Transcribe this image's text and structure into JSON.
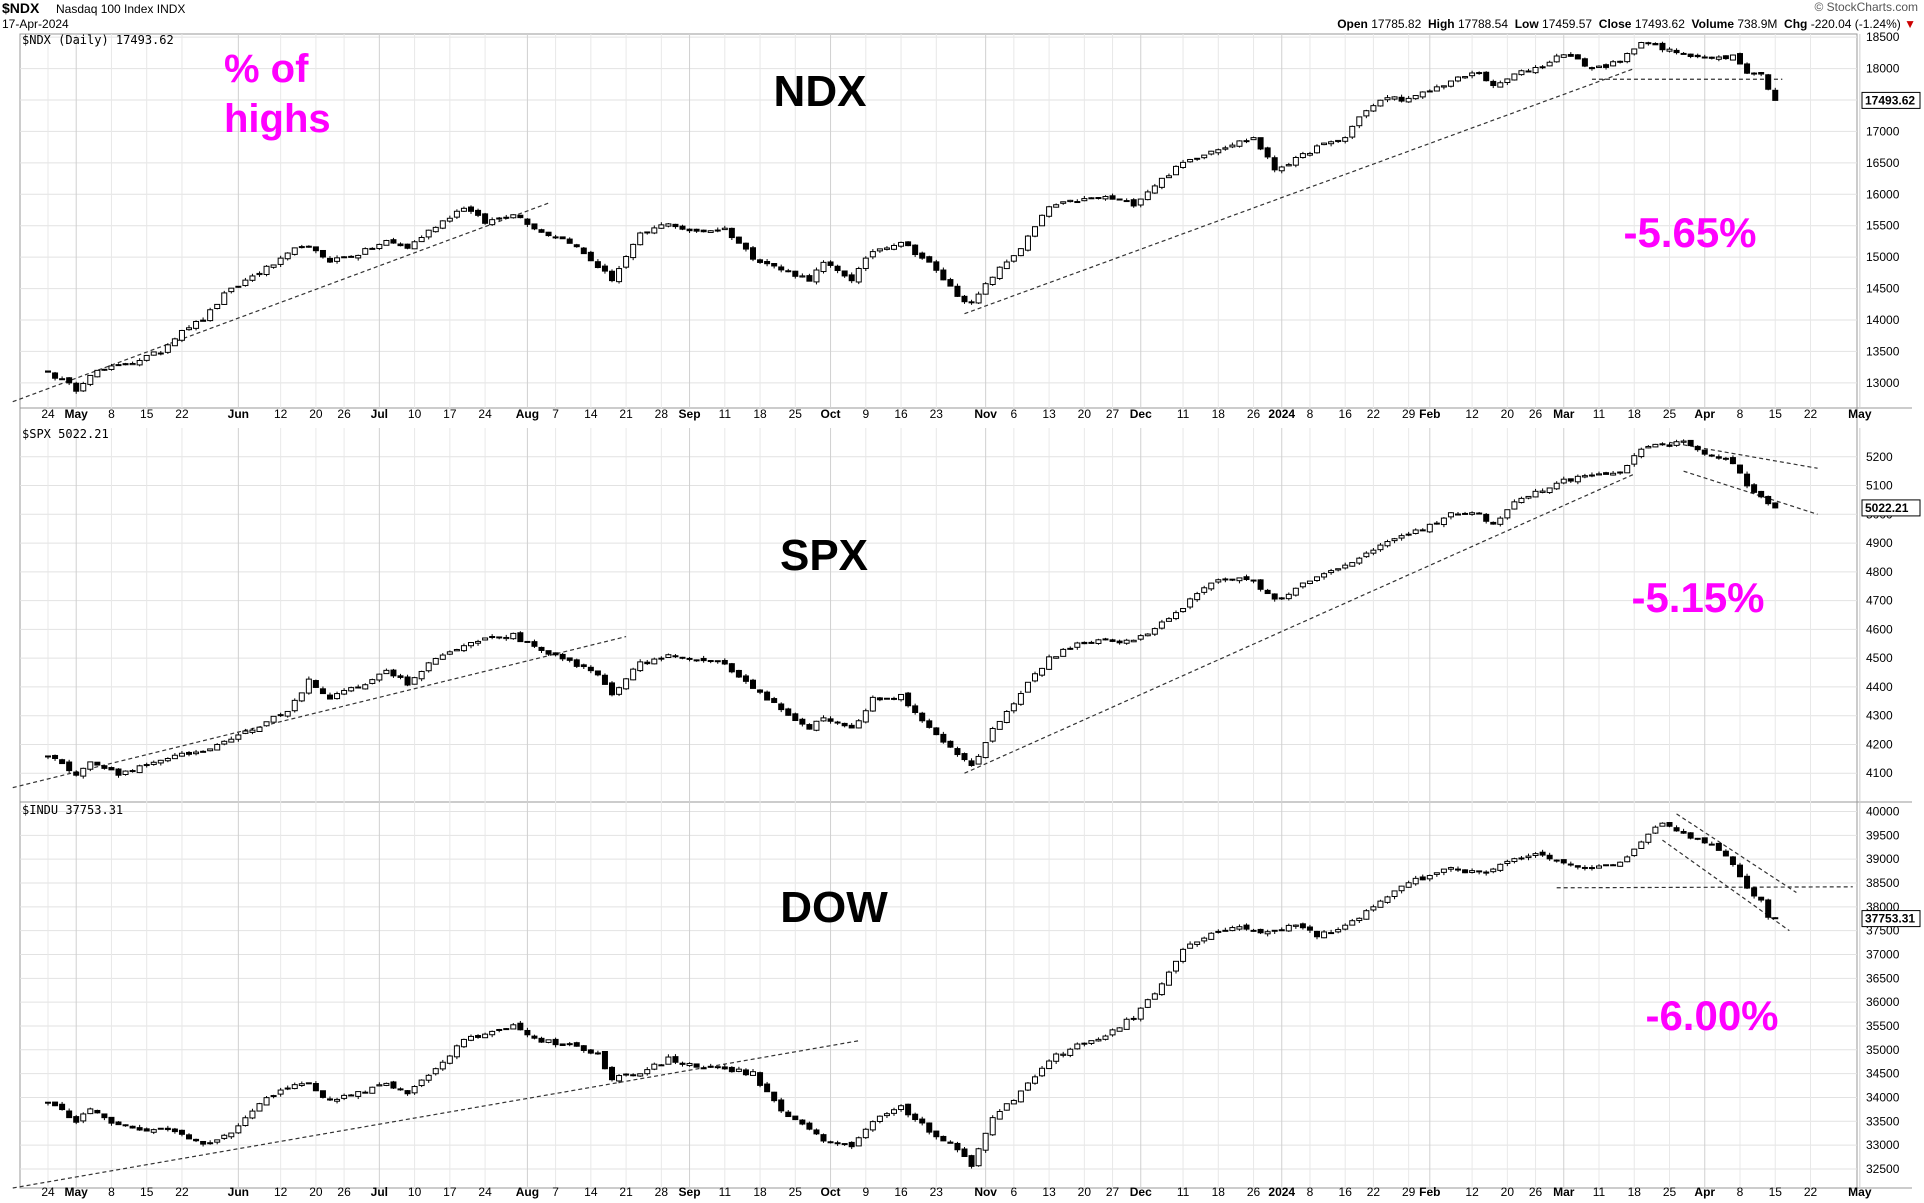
{
  "header": {
    "symbol": "$NDX",
    "name": "Nasdaq 100 Index",
    "exchange": "INDX",
    "date": "17-Apr-2024",
    "brand": "© StockCharts.com",
    "open_label": "Open",
    "open": "17785.82",
    "high_label": "High",
    "high": "17788.54",
    "low_label": "Low",
    "low": "17459.57",
    "close_label": "Close",
    "close": "17493.62",
    "volume_label": "Volume",
    "volume": "738.9M",
    "chg_label": "Chg",
    "chg": "-220.04 (-1.24%)"
  },
  "annotations": {
    "highs_line1": "% of",
    "highs_line2": "highs"
  },
  "x_axis": {
    "ticks": [
      {
        "d": 0,
        "label": "24"
      },
      {
        "d": 4,
        "label": "May",
        "month": true
      },
      {
        "d": 9,
        "label": "8"
      },
      {
        "d": 14,
        "label": "15"
      },
      {
        "d": 19,
        "label": "22"
      },
      {
        "d": 27,
        "label": "Jun",
        "month": true
      },
      {
        "d": 33,
        "label": "12"
      },
      {
        "d": 38,
        "label": "20"
      },
      {
        "d": 42,
        "label": "26"
      },
      {
        "d": 47,
        "label": "Jul",
        "month": true
      },
      {
        "d": 52,
        "label": "10"
      },
      {
        "d": 57,
        "label": "17"
      },
      {
        "d": 62,
        "label": "24"
      },
      {
        "d": 68,
        "label": "Aug",
        "month": true
      },
      {
        "d": 72,
        "label": "7"
      },
      {
        "d": 77,
        "label": "14"
      },
      {
        "d": 82,
        "label": "21"
      },
      {
        "d": 87,
        "label": "28"
      },
      {
        "d": 91,
        "label": "Sep",
        "month": true
      },
      {
        "d": 96,
        "label": "11"
      },
      {
        "d": 101,
        "label": "18"
      },
      {
        "d": 106,
        "label": "25"
      },
      {
        "d": 111,
        "label": "Oct",
        "month": true
      },
      {
        "d": 116,
        "label": "9"
      },
      {
        "d": 121,
        "label": "16"
      },
      {
        "d": 126,
        "label": "23"
      },
      {
        "d": 133,
        "label": "Nov",
        "month": true
      },
      {
        "d": 137,
        "label": "6"
      },
      {
        "d": 142,
        "label": "13"
      },
      {
        "d": 147,
        "label": "20"
      },
      {
        "d": 151,
        "label": "27"
      },
      {
        "d": 155,
        "label": "Dec",
        "month": true
      },
      {
        "d": 161,
        "label": "11"
      },
      {
        "d": 166,
        "label": "18"
      },
      {
        "d": 171,
        "label": "26"
      },
      {
        "d": 175,
        "label": "2024",
        "month": true
      },
      {
        "d": 179,
        "label": "8"
      },
      {
        "d": 184,
        "label": "16"
      },
      {
        "d": 188,
        "label": "22"
      },
      {
        "d": 193,
        "label": "29"
      },
      {
        "d": 196,
        "label": "Feb",
        "month": true
      },
      {
        "d": 202,
        "label": "12"
      },
      {
        "d": 207,
        "label": "20"
      },
      {
        "d": 211,
        "label": "26"
      },
      {
        "d": 215,
        "label": "Mar",
        "month": true
      },
      {
        "d": 220,
        "label": "11"
      },
      {
        "d": 225,
        "label": "18"
      },
      {
        "d": 230,
        "label": "25"
      },
      {
        "d": 235,
        "label": "Apr",
        "month": true
      },
      {
        "d": 240,
        "label": "8"
      },
      {
        "d": 245,
        "label": "15"
      },
      {
        "d": 250,
        "label": "22"
      },
      {
        "d": 257,
        "label": "May",
        "month": true
      }
    ]
  },
  "chart_data": [
    {
      "type": "candlestick",
      "symbol": "$NDX",
      "legend": "$NDX (Daily) 17493.62",
      "title": "NDX",
      "pct_from_high": "-5.65%",
      "last_value": "17493.62",
      "y_ticks": [
        13000,
        13500,
        14000,
        14500,
        15000,
        15500,
        16000,
        16500,
        17000,
        17500,
        18000,
        18500
      ],
      "ylim": [
        12600,
        18550
      ],
      "anchors": [
        [
          0,
          13170
        ],
        [
          4,
          12900
        ],
        [
          6,
          13150
        ],
        [
          12,
          13330
        ],
        [
          16,
          13500
        ],
        [
          19,
          13850
        ],
        [
          22,
          14000
        ],
        [
          25,
          14400
        ],
        [
          29,
          14700
        ],
        [
          33,
          14950
        ],
        [
          36,
          15200
        ],
        [
          40,
          14950
        ],
        [
          44,
          15050
        ],
        [
          48,
          15250
        ],
        [
          51,
          15150
        ],
        [
          55,
          15500
        ],
        [
          59,
          15800
        ],
        [
          62,
          15550
        ],
        [
          66,
          15700
        ],
        [
          70,
          15400
        ],
        [
          74,
          15250
        ],
        [
          80,
          14650
        ],
        [
          84,
          15350
        ],
        [
          88,
          15550
        ],
        [
          91,
          15400
        ],
        [
          96,
          15450
        ],
        [
          100,
          15000
        ],
        [
          104,
          14800
        ],
        [
          108,
          14650
        ],
        [
          110,
          14900
        ],
        [
          114,
          14650
        ],
        [
          117,
          15100
        ],
        [
          121,
          15250
        ],
        [
          125,
          14900
        ],
        [
          129,
          14400
        ],
        [
          131,
          14250
        ],
        [
          134,
          14700
        ],
        [
          138,
          15150
        ],
        [
          142,
          15800
        ],
        [
          146,
          15900
        ],
        [
          150,
          15950
        ],
        [
          154,
          15850
        ],
        [
          157,
          16150
        ],
        [
          161,
          16500
        ],
        [
          165,
          16700
        ],
        [
          168,
          16800
        ],
        [
          171,
          16900
        ],
        [
          174,
          16400
        ],
        [
          177,
          16550
        ],
        [
          180,
          16750
        ],
        [
          184,
          16900
        ],
        [
          186,
          17250
        ],
        [
          190,
          17550
        ],
        [
          193,
          17500
        ],
        [
          196,
          17650
        ],
        [
          199,
          17800
        ],
        [
          203,
          17950
        ],
        [
          205,
          17700
        ],
        [
          208,
          17900
        ],
        [
          212,
          18050
        ],
        [
          215,
          18250
        ],
        [
          219,
          18000
        ],
        [
          223,
          18100
        ],
        [
          226,
          18450
        ],
        [
          229,
          18300
        ],
        [
          232,
          18250
        ],
        [
          236,
          18150
        ],
        [
          239,
          18200
        ],
        [
          241,
          17950
        ],
        [
          243,
          17900
        ],
        [
          244,
          17700
        ],
        [
          245,
          17493.62
        ]
      ],
      "trendlines": [
        {
          "from": [
            -5,
            12700
          ],
          "to": [
            71,
            15860
          ]
        },
        {
          "from": [
            130,
            14100
          ],
          "to": [
            225,
            18000
          ]
        },
        {
          "from": [
            219,
            17830
          ],
          "to": [
            246,
            17830
          ]
        }
      ]
    },
    {
      "type": "candlestick",
      "symbol": "$SPX",
      "legend": "$SPX 5022.21",
      "title": "SPX",
      "pct_from_high": "-5.15%",
      "last_value": "5022.21",
      "y_ticks": [
        4100,
        4200,
        4300,
        4400,
        4500,
        4600,
        4700,
        4800,
        4900,
        5000,
        5100,
        5200
      ],
      "ylim": [
        4000,
        5300
      ],
      "anchors": [
        [
          0,
          4160
        ],
        [
          4,
          4100
        ],
        [
          6,
          4140
        ],
        [
          10,
          4100
        ],
        [
          14,
          4130
        ],
        [
          18,
          4160
        ],
        [
          22,
          4170
        ],
        [
          26,
          4220
        ],
        [
          30,
          4260
        ],
        [
          34,
          4320
        ],
        [
          37,
          4420
        ],
        [
          40,
          4360
        ],
        [
          44,
          4400
        ],
        [
          48,
          4460
        ],
        [
          51,
          4410
        ],
        [
          55,
          4500
        ],
        [
          59,
          4540
        ],
        [
          63,
          4570
        ],
        [
          66,
          4580
        ],
        [
          70,
          4520
        ],
        [
          74,
          4490
        ],
        [
          78,
          4440
        ],
        [
          80,
          4380
        ],
        [
          84,
          4480
        ],
        [
          88,
          4510
        ],
        [
          91,
          4490
        ],
        [
          96,
          4480
        ],
        [
          100,
          4400
        ],
        [
          104,
          4320
        ],
        [
          108,
          4260
        ],
        [
          110,
          4290
        ],
        [
          114,
          4250
        ],
        [
          117,
          4360
        ],
        [
          121,
          4370
        ],
        [
          125,
          4260
        ],
        [
          129,
          4160
        ],
        [
          131,
          4120
        ],
        [
          134,
          4250
        ],
        [
          138,
          4380
        ],
        [
          142,
          4500
        ],
        [
          146,
          4550
        ],
        [
          150,
          4560
        ],
        [
          154,
          4560
        ],
        [
          157,
          4600
        ],
        [
          161,
          4680
        ],
        [
          165,
          4760
        ],
        [
          168,
          4780
        ],
        [
          171,
          4770
        ],
        [
          174,
          4700
        ],
        [
          177,
          4740
        ],
        [
          180,
          4780
        ],
        [
          184,
          4820
        ],
        [
          186,
          4850
        ],
        [
          190,
          4900
        ],
        [
          193,
          4930
        ],
        [
          196,
          4960
        ],
        [
          199,
          5000
        ],
        [
          203,
          5000
        ],
        [
          205,
          4960
        ],
        [
          208,
          5050
        ],
        [
          212,
          5080
        ],
        [
          215,
          5120
        ],
        [
          219,
          5130
        ],
        [
          223,
          5150
        ],
        [
          226,
          5230
        ],
        [
          229,
          5240
        ],
        [
          232,
          5250
        ],
        [
          236,
          5200
        ],
        [
          239,
          5180
        ],
        [
          241,
          5100
        ],
        [
          243,
          5060
        ],
        [
          244,
          5030
        ],
        [
          245,
          5022.21
        ]
      ],
      "trendlines": [
        {
          "from": [
            -5,
            4050
          ],
          "to": [
            82,
            4575
          ]
        },
        {
          "from": [
            130,
            4100
          ],
          "to": [
            225,
            5140
          ]
        },
        {
          "from": [
            230,
            5250
          ],
          "to": [
            251,
            5160
          ]
        },
        {
          "from": [
            232,
            5150
          ],
          "to": [
            251,
            5000
          ]
        }
      ]
    },
    {
      "type": "candlestick",
      "symbol": "$INDU",
      "legend": "$INDU 37753.31",
      "title": "DOW",
      "pct_from_high": "-6.00%",
      "last_value": "37753.31",
      "y_ticks": [
        32500,
        33000,
        33500,
        34000,
        34500,
        35000,
        35500,
        36000,
        36500,
        37000,
        37500,
        38000,
        38500,
        39000,
        39500,
        40000
      ],
      "ylim": [
        32100,
        40200
      ],
      "anchors": [
        [
          0,
          33900
        ],
        [
          4,
          33500
        ],
        [
          6,
          33800
        ],
        [
          10,
          33400
        ],
        [
          14,
          33300
        ],
        [
          18,
          33300
        ],
        [
          22,
          33000
        ],
        [
          26,
          33300
        ],
        [
          30,
          33900
        ],
        [
          34,
          34200
        ],
        [
          37,
          34300
        ],
        [
          40,
          33900
        ],
        [
          44,
          34100
        ],
        [
          48,
          34300
        ],
        [
          51,
          34100
        ],
        [
          55,
          34600
        ],
        [
          59,
          35200
        ],
        [
          63,
          35400
        ],
        [
          66,
          35500
        ],
        [
          70,
          35200
        ],
        [
          74,
          35100
        ],
        [
          78,
          34900
        ],
        [
          80,
          34400
        ],
        [
          84,
          34500
        ],
        [
          88,
          34800
        ],
        [
          91,
          34700
        ],
        [
          96,
          34600
        ],
        [
          100,
          34500
        ],
        [
          104,
          33700
        ],
        [
          108,
          33300
        ],
        [
          110,
          33100
        ],
        [
          114,
          33000
        ],
        [
          117,
          33500
        ],
        [
          121,
          33800
        ],
        [
          125,
          33300
        ],
        [
          129,
          32900
        ],
        [
          131,
          32600
        ],
        [
          134,
          33600
        ],
        [
          138,
          34100
        ],
        [
          142,
          34800
        ],
        [
          146,
          35100
        ],
        [
          150,
          35300
        ],
        [
          154,
          35700
        ],
        [
          157,
          36200
        ],
        [
          161,
          37100
        ],
        [
          165,
          37400
        ],
        [
          168,
          37600
        ],
        [
          171,
          37500
        ],
        [
          174,
          37500
        ],
        [
          177,
          37600
        ],
        [
          180,
          37400
        ],
        [
          184,
          37600
        ],
        [
          186,
          37800
        ],
        [
          190,
          38200
        ],
        [
          193,
          38500
        ],
        [
          196,
          38650
        ],
        [
          199,
          38800
        ],
        [
          203,
          38700
        ],
        [
          205,
          38800
        ],
        [
          208,
          39000
        ],
        [
          212,
          39100
        ],
        [
          215,
          38900
        ],
        [
          219,
          38800
        ],
        [
          223,
          38900
        ],
        [
          226,
          39400
        ],
        [
          229,
          39800
        ],
        [
          232,
          39500
        ],
        [
          236,
          39300
        ],
        [
          239,
          38900
        ],
        [
          241,
          38400
        ],
        [
          243,
          38100
        ],
        [
          244,
          37800
        ],
        [
          245,
          37753.31
        ]
      ],
      "trendlines": [
        {
          "from": [
            -5,
            32100
          ],
          "to": [
            115,
            35190
          ]
        },
        {
          "from": [
            214,
            38400
          ],
          "to": [
            256,
            38420
          ]
        },
        {
          "from": [
            231,
            39950
          ],
          "to": [
            248,
            38300
          ]
        },
        {
          "from": [
            229,
            39400
          ],
          "to": [
            247,
            37500
          ]
        }
      ]
    }
  ]
}
